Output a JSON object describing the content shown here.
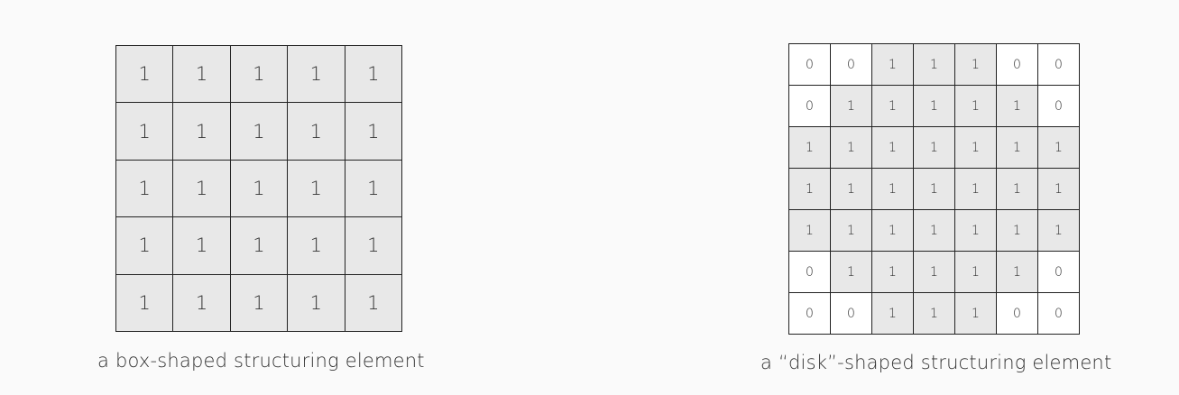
{
  "box_element": {
    "caption": "a box-shaped structuring element",
    "matrix": [
      [
        1,
        1,
        1,
        1,
        1
      ],
      [
        1,
        1,
        1,
        1,
        1
      ],
      [
        1,
        1,
        1,
        1,
        1
      ],
      [
        1,
        1,
        1,
        1,
        1
      ],
      [
        1,
        1,
        1,
        1,
        1
      ]
    ]
  },
  "disk_element": {
    "caption": "a “disk”-shaped structuring element",
    "matrix": [
      [
        0,
        0,
        1,
        1,
        1,
        0,
        0
      ],
      [
        0,
        1,
        1,
        1,
        1,
        1,
        0
      ],
      [
        1,
        1,
        1,
        1,
        1,
        1,
        1
      ],
      [
        1,
        1,
        1,
        1,
        1,
        1,
        1
      ],
      [
        1,
        1,
        1,
        1,
        1,
        1,
        1
      ],
      [
        0,
        1,
        1,
        1,
        1,
        1,
        0
      ],
      [
        0,
        0,
        1,
        1,
        1,
        0,
        0
      ]
    ]
  },
  "colors": {
    "active_cell": "#e8e8e8",
    "inactive_cell": "#ffffff",
    "grid_line": "#222222",
    "text": "#333333"
  }
}
